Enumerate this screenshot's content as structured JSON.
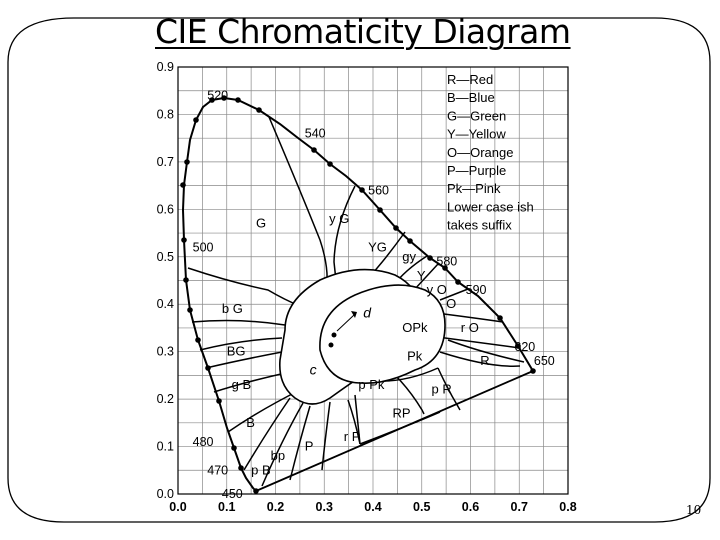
{
  "slide": {
    "title": "CIE Chromaticity Diagram",
    "page_number": "10"
  },
  "chart_data": {
    "type": "diagram",
    "x_ticks": [
      "0.0",
      "0.1",
      "0.2",
      "0.3",
      "0.4",
      "0.5",
      "0.6",
      "0.7",
      "0.8"
    ],
    "y_ticks": [
      "0.0",
      "0.1",
      "0.2",
      "0.3",
      "0.4",
      "0.5",
      "0.6",
      "0.7",
      "0.8",
      "0.9"
    ],
    "xlim": [
      0,
      0.8
    ],
    "ylim": [
      0,
      0.9
    ],
    "grid": true,
    "wavelength_labels": [
      {
        "text": "520",
        "x": 0.06,
        "y": 0.84
      },
      {
        "text": "540",
        "x": 0.26,
        "y": 0.76
      },
      {
        "text": "560",
        "x": 0.39,
        "y": 0.64
      },
      {
        "text": "500",
        "x": 0.03,
        "y": 0.52
      },
      {
        "text": "580",
        "x": 0.53,
        "y": 0.49
      },
      {
        "text": "590",
        "x": 0.59,
        "y": 0.43
      },
      {
        "text": "620",
        "x": 0.69,
        "y": 0.31
      },
      {
        "text": "650",
        "x": 0.73,
        "y": 0.28
      },
      {
        "text": "480",
        "x": 0.03,
        "y": 0.11
      },
      {
        "text": "470",
        "x": 0.06,
        "y": 0.05
      },
      {
        "text": "450",
        "x": 0.09,
        "y": 0.0
      }
    ],
    "region_labels": [
      {
        "text": "G",
        "x": 0.16,
        "y": 0.57
      },
      {
        "text": "y G",
        "x": 0.31,
        "y": 0.58
      },
      {
        "text": "YG",
        "x": 0.39,
        "y": 0.52
      },
      {
        "text": "gy",
        "x": 0.46,
        "y": 0.5
      },
      {
        "text": "Y",
        "x": 0.49,
        "y": 0.46
      },
      {
        "text": "y O",
        "x": 0.51,
        "y": 0.43
      },
      {
        "text": "O",
        "x": 0.55,
        "y": 0.4
      },
      {
        "text": "b G",
        "x": 0.09,
        "y": 0.39
      },
      {
        "text": "d",
        "x": 0.38,
        "y": 0.38
      },
      {
        "text": "OPk",
        "x": 0.46,
        "y": 0.35
      },
      {
        "text": "r O",
        "x": 0.58,
        "y": 0.35
      },
      {
        "text": "BG",
        "x": 0.1,
        "y": 0.3
      },
      {
        "text": "Pk",
        "x": 0.47,
        "y": 0.29
      },
      {
        "text": "R",
        "x": 0.62,
        "y": 0.28
      },
      {
        "text": "c",
        "x": 0.27,
        "y": 0.26
      },
      {
        "text": "g B",
        "x": 0.11,
        "y": 0.23
      },
      {
        "text": "p Pk",
        "x": 0.37,
        "y": 0.23
      },
      {
        "text": "p R",
        "x": 0.52,
        "y": 0.22
      },
      {
        "text": "RP",
        "x": 0.44,
        "y": 0.17
      },
      {
        "text": "B",
        "x": 0.14,
        "y": 0.15
      },
      {
        "text": "r P",
        "x": 0.34,
        "y": 0.12
      },
      {
        "text": "P",
        "x": 0.26,
        "y": 0.1
      },
      {
        "text": "bp",
        "x": 0.19,
        "y": 0.08
      },
      {
        "text": "p B",
        "x": 0.15,
        "y": 0.05
      }
    ],
    "legend": [
      "R—Red",
      "B—Blue",
      "G—Green",
      "Y—Yellow",
      "O—Orange",
      "P—Purple",
      "Pk—Pink",
      "Lower case ish",
      "takes suffix"
    ]
  }
}
